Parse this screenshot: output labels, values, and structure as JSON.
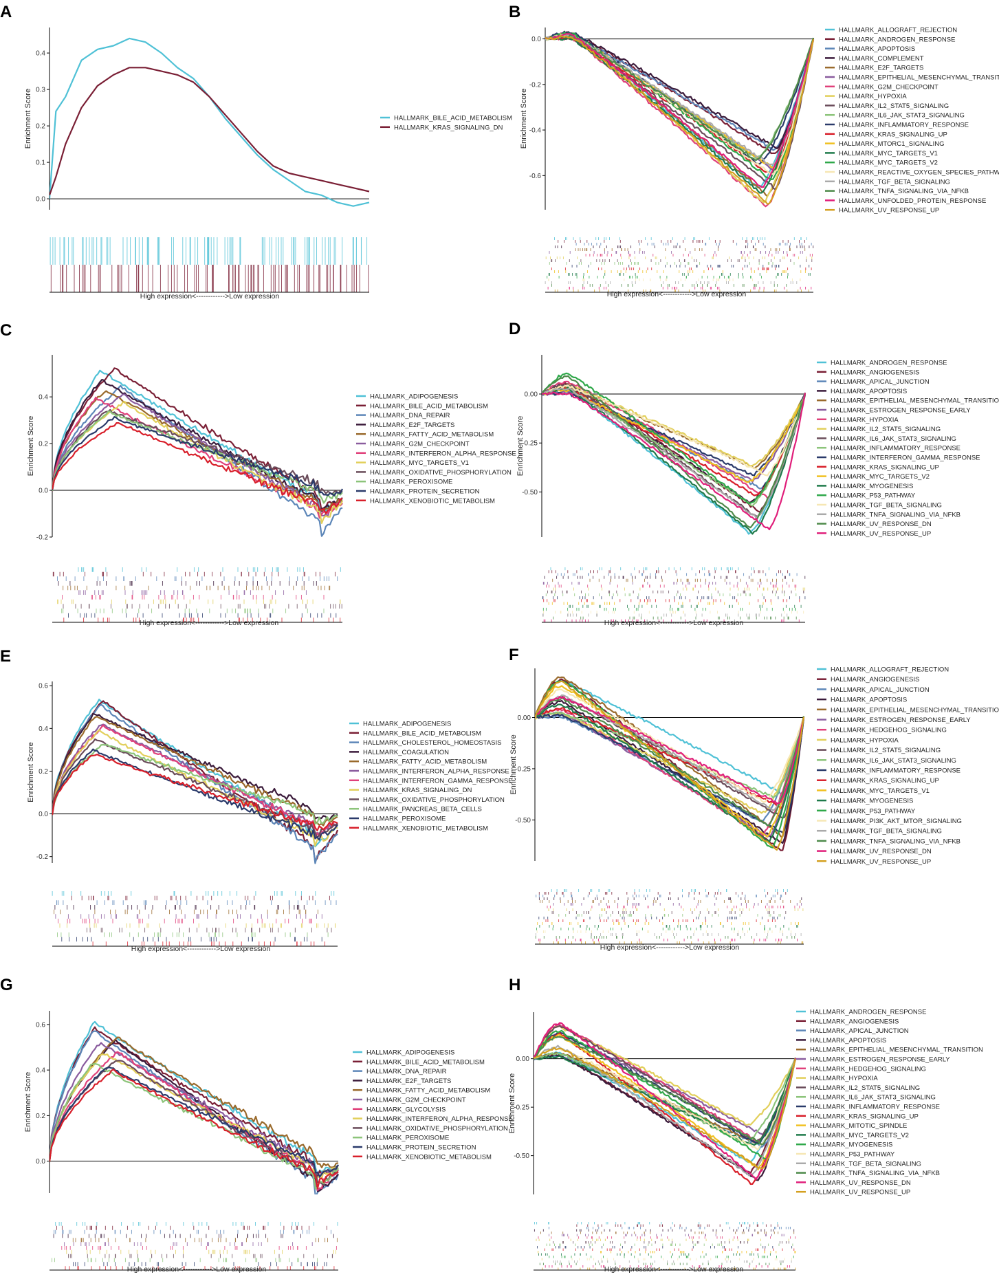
{
  "figure": {
    "colors": [
      "#4FC1D6",
      "#7A1F35",
      "#5C86B8",
      "#3A1A3A",
      "#9A6A2C",
      "#8A5C9E",
      "#E0407A",
      "#E2CF5A",
      "#6A4C5A",
      "#8CC47A",
      "#2A3A6A",
      "#D81F2A",
      "#F0C020",
      "#1E7A4A",
      "#2FA84A",
      "#F6E7B4",
      "#AAAAAA",
      "#4E8A4A",
      "#E01E7A",
      "#D4A020"
    ],
    "gene_rank_label": "High expression<------------>Low expression",
    "axis_ylabel": "Enrichment Score",
    "chart_data": [
      {
        "panel": "A",
        "type": "line",
        "ylabel": "Enrichment Score",
        "xlabel": "High expression<------------>Low expression",
        "ylim": [
          -0.03,
          0.47
        ],
        "yticks": [
          0.0,
          0.1,
          0.2,
          0.3,
          0.4
        ],
        "ytick_labels": [
          "0.0",
          "0.1",
          "0.2",
          "0.3",
          "0.4"
        ],
        "x": [
          0,
          0.02,
          0.05,
          0.1,
          0.15,
          0.2,
          0.25,
          0.3,
          0.35,
          0.4,
          0.45,
          0.5,
          0.55,
          0.6,
          0.65,
          0.7,
          0.75,
          0.8,
          0.85,
          0.9,
          0.95,
          1.0
        ],
        "series": [
          {
            "name": "HALLMARK_BILE_ACID_METABOLISM",
            "color_index": 0,
            "values": [
              0.0,
              0.24,
              0.28,
              0.38,
              0.41,
              0.42,
              0.44,
              0.43,
              0.4,
              0.36,
              0.33,
              0.28,
              0.22,
              0.17,
              0.12,
              0.08,
              0.05,
              0.02,
              0.01,
              -0.01,
              -0.02,
              -0.01
            ]
          },
          {
            "name": "HALLMARK_KRAS_SIGNALING_DN",
            "color_index": 1,
            "values": [
              0.01,
              0.06,
              0.15,
              0.25,
              0.31,
              0.34,
              0.36,
              0.36,
              0.35,
              0.34,
              0.32,
              0.28,
              0.23,
              0.18,
              0.13,
              0.09,
              0.07,
              0.06,
              0.05,
              0.04,
              0.03,
              0.02
            ]
          }
        ]
      },
      {
        "panel": "B",
        "type": "line",
        "ylabel": "Enrichment Score",
        "xlabel": "High expression<------------>Low expression",
        "ylim": [
          -0.75,
          0.05
        ],
        "yticks": [
          0.0,
          -0.2,
          -0.4,
          -0.6
        ],
        "ytick_labels": [
          "0.0",
          "-0.2",
          "-0.4",
          "-0.6"
        ],
        "shape": "dip",
        "peak": 0.03,
        "trough_x": 0.84,
        "trough_min": -0.43,
        "trough_max": -0.74,
        "series": [
          {
            "name": "HALLMARK_ALLOGRAFT_REJECTION",
            "color_index": 0
          },
          {
            "name": "HALLMARK_ANDROGEN_RESPONSE",
            "color_index": 1
          },
          {
            "name": "HALLMARK_APOPTOSIS",
            "color_index": 2
          },
          {
            "name": "HALLMARK_COMPLEMENT",
            "color_index": 3
          },
          {
            "name": "HALLMARK_E2F_TARGETS",
            "color_index": 4
          },
          {
            "name": "HALLMARK_EPITHELIAL_MESENCHYMAL_TRANSITION",
            "color_index": 5
          },
          {
            "name": "HALLMARK_G2M_CHECKPOINT",
            "color_index": 6
          },
          {
            "name": "HALLMARK_HYPOXIA",
            "color_index": 7
          },
          {
            "name": "HALLMARK_IL2_STAT5_SIGNALING",
            "color_index": 8
          },
          {
            "name": "HALLMARK_IL6_JAK_STAT3_SIGNALING",
            "color_index": 9
          },
          {
            "name": "HALLMARK_INFLAMMATORY_RESPONSE",
            "color_index": 10
          },
          {
            "name": "HALLMARK_KRAS_SIGNALING_UP",
            "color_index": 11
          },
          {
            "name": "HALLMARK_MTORC1_SIGNALING",
            "color_index": 12
          },
          {
            "name": "HALLMARK_MYC_TARGETS_V1",
            "color_index": 13
          },
          {
            "name": "HALLMARK_MYC_TARGETS_V2",
            "color_index": 14
          },
          {
            "name": "HALLMARK_REACTIVE_OXYGEN_SPECIES_PATHWAY",
            "color_index": 15
          },
          {
            "name": "HALLMARK_TGF_BETA_SIGNALING",
            "color_index": 16
          },
          {
            "name": "HALLMARK_TNFA_SIGNALING_VIA_NFKB",
            "color_index": 17
          },
          {
            "name": "HALLMARK_UNFOLDED_PROTEIN_RESPONSE",
            "color_index": 18
          },
          {
            "name": "HALLMARK_UV_RESPONSE_UP",
            "color_index": 19
          }
        ]
      },
      {
        "panel": "C",
        "type": "line",
        "ylabel": "Enrichment Score",
        "xlabel": "High expression<------------>Low expression",
        "ylim": [
          -0.2,
          0.58
        ],
        "yticks": [
          0.4,
          0.2,
          0.0,
          -0.2
        ],
        "ytick_labels": [
          "0.4",
          "0.2",
          "0.0",
          "-0.2"
        ],
        "shape": "hump",
        "peak_x": 0.2,
        "peak_min": 0.29,
        "peak_max": 0.55,
        "end_min": -0.18,
        "end_max": 0.02,
        "series": [
          {
            "name": "HALLMARK_ADIPOGENESIS",
            "color_index": 0
          },
          {
            "name": "HALLMARK_BILE_ACID_METABOLISM",
            "color_index": 1
          },
          {
            "name": "HALLMARK_DNA_REPAIR",
            "color_index": 2
          },
          {
            "name": "HALLMARK_E2F_TARGETS",
            "color_index": 3
          },
          {
            "name": "HALLMARK_FATTY_ACID_METABOLISM",
            "color_index": 4
          },
          {
            "name": "HALLMARK_G2M_CHECKPOINT",
            "color_index": 5
          },
          {
            "name": "HALLMARK_INTERFERON_ALPHA_RESPONSE",
            "color_index": 6
          },
          {
            "name": "HALLMARK_MYC_TARGETS_V1",
            "color_index": 7
          },
          {
            "name": "HALLMARK_OXIDATIVE_PHOSPHORYLATION",
            "color_index": 8
          },
          {
            "name": "HALLMARK_PEROXISOME",
            "color_index": 9
          },
          {
            "name": "HALLMARK_PROTEIN_SECRETION",
            "color_index": 10
          },
          {
            "name": "HALLMARK_XENOBIOTIC_METABOLISM",
            "color_index": 11
          }
        ]
      },
      {
        "panel": "D",
        "type": "line",
        "ylabel": "Enrichment Score",
        "xlabel": "High expression<------------>Low expression",
        "ylim": [
          -0.73,
          0.2
        ],
        "yticks": [
          0.0,
          -0.25,
          -0.5
        ],
        "ytick_labels": [
          "0.00",
          "-0.25",
          "-0.50"
        ],
        "shape": "dip",
        "peak": 0.12,
        "trough_x": 0.84,
        "trough_min": -0.28,
        "trough_max": -0.72,
        "series": [
          {
            "name": "HALLMARK_ANDROGEN_RESPONSE",
            "color_index": 0
          },
          {
            "name": "HALLMARK_ANGIOGENESIS",
            "color_index": 1
          },
          {
            "name": "HALLMARK_APICAL_JUNCTION",
            "color_index": 2
          },
          {
            "name": "HALLMARK_APOPTOSIS",
            "color_index": 3
          },
          {
            "name": "HALLMARK_EPITHELIAL_MESENCHYMAL_TRANSITION",
            "color_index": 4
          },
          {
            "name": "HALLMARK_ESTROGEN_RESPONSE_EARLY",
            "color_index": 5
          },
          {
            "name": "HALLMARK_HYPOXIA",
            "color_index": 6
          },
          {
            "name": "HALLMARK_IL2_STAT5_SIGNALING",
            "color_index": 7
          },
          {
            "name": "HALLMARK_IL6_JAK_STAT3_SIGNALING",
            "color_index": 8
          },
          {
            "name": "HALLMARK_INFLAMMATORY_RESPONSE",
            "color_index": 9
          },
          {
            "name": "HALLMARK_INTERFERON_GAMMA_RESPONSE",
            "color_index": 10
          },
          {
            "name": "HALLMARK_KRAS_SIGNALING_UP",
            "color_index": 11
          },
          {
            "name": "HALLMARK_MYC_TARGETS_V2",
            "color_index": 12
          },
          {
            "name": "HALLMARK_MYOGENESIS",
            "color_index": 13
          },
          {
            "name": "HALLMARK_P53_PATHWAY",
            "color_index": 14
          },
          {
            "name": "HALLMARK_TGF_BETA_SIGNALING",
            "color_index": 15
          },
          {
            "name": "HALLMARK_TNFA_SIGNALING_VIA_NFKB",
            "color_index": 16
          },
          {
            "name": "HALLMARK_UV_RESPONSE_DN",
            "color_index": 17
          },
          {
            "name": "HALLMARK_UV_RESPONSE_UP",
            "color_index": 18
          }
        ]
      },
      {
        "panel": "E",
        "type": "line",
        "ylabel": "Enrichment Score",
        "xlabel": "High expression<------------>Low expression",
        "ylim": [
          -0.23,
          0.62
        ],
        "yticks": [
          0.6,
          0.4,
          0.2,
          0.0,
          -0.2
        ],
        "ytick_labels": [
          "0.6",
          "0.4",
          "0.2",
          "0.0",
          "-0.2"
        ],
        "shape": "hump",
        "peak_x": 0.15,
        "peak_min": 0.28,
        "peak_max": 0.59,
        "end_min": -0.22,
        "end_max": 0.0,
        "series": [
          {
            "name": "HALLMARK_ADIPOGENESIS",
            "color_index": 0
          },
          {
            "name": "HALLMARK_BILE_ACID_METABOLISM",
            "color_index": 1
          },
          {
            "name": "HALLMARK_CHOLESTEROL_HOMEOSTASIS",
            "color_index": 2
          },
          {
            "name": "HALLMARK_COAGULATION",
            "color_index": 3
          },
          {
            "name": "HALLMARK_FATTY_ACID_METABOLISM",
            "color_index": 4
          },
          {
            "name": "HALLMARK_INTERFERON_ALPHA_RESPONSE",
            "color_index": 5
          },
          {
            "name": "HALLMARK_INTERFERON_GAMMA_RESPONSE",
            "color_index": 6
          },
          {
            "name": "HALLMARK_KRAS_SIGNALING_DN",
            "color_index": 7
          },
          {
            "name": "HALLMARK_OXIDATIVE_PHOSPHORYLATION",
            "color_index": 8
          },
          {
            "name": "HALLMARK_PANCREAS_BETA_CELLS",
            "color_index": 9
          },
          {
            "name": "HALLMARK_PEROXISOME",
            "color_index": 10
          },
          {
            "name": "HALLMARK_XENOBIOTIC_METABOLISM",
            "color_index": 11
          }
        ]
      },
      {
        "panel": "F",
        "type": "line",
        "ylabel": "Enrichment Score",
        "xlabel": "High expression<------------>Low expression",
        "ylim": [
          -0.7,
          0.24
        ],
        "yticks": [
          0.0,
          -0.25,
          -0.5
        ],
        "ytick_labels": [
          "0.00",
          "-0.25",
          "-0.50"
        ],
        "shape": "dip",
        "peak": 0.2,
        "trough_x": 0.9,
        "trough_min": -0.3,
        "trough_max": -0.66,
        "series": [
          {
            "name": "HALLMARK_ALLOGRAFT_REJECTION",
            "color_index": 0
          },
          {
            "name": "HALLMARK_ANGIOGENESIS",
            "color_index": 1
          },
          {
            "name": "HALLMARK_APICAL_JUNCTION",
            "color_index": 2
          },
          {
            "name": "HALLMARK_APOPTOSIS",
            "color_index": 3
          },
          {
            "name": "HALLMARK_EPITHELIAL_MESENCHYMAL_TRANSITION",
            "color_index": 4
          },
          {
            "name": "HALLMARK_ESTROGEN_RESPONSE_EARLY",
            "color_index": 5
          },
          {
            "name": "HALLMARK_HEDGEHOG_SIGNALING",
            "color_index": 6
          },
          {
            "name": "HALLMARK_HYPOXIA",
            "color_index": 7
          },
          {
            "name": "HALLMARK_IL2_STAT5_SIGNALING",
            "color_index": 8
          },
          {
            "name": "HALLMARK_IL6_JAK_STAT3_SIGNALING",
            "color_index": 9
          },
          {
            "name": "HALLMARK_INFLAMMATORY_RESPONSE",
            "color_index": 10
          },
          {
            "name": "HALLMARK_KRAS_SIGNALING_UP",
            "color_index": 11
          },
          {
            "name": "HALLMARK_MYC_TARGETS_V1",
            "color_index": 12
          },
          {
            "name": "HALLMARK_MYOGENESIS",
            "color_index": 13
          },
          {
            "name": "HALLMARK_P53_PATHWAY",
            "color_index": 14
          },
          {
            "name": "HALLMARK_PI3K_AKT_MTOR_SIGNALING",
            "color_index": 15
          },
          {
            "name": "HALLMARK_TGF_BETA_SIGNALING",
            "color_index": 16
          },
          {
            "name": "HALLMARK_TNFA_SIGNALING_VIA_NFKB",
            "color_index": 17
          },
          {
            "name": "HALLMARK_UV_RESPONSE_DN",
            "color_index": 18
          },
          {
            "name": "HALLMARK_UV_RESPONSE_UP",
            "color_index": 19
          }
        ]
      },
      {
        "panel": "G",
        "type": "line",
        "ylabel": "Enrichment Score",
        "xlabel": "High expression<------------>Low expression",
        "ylim": [
          -0.14,
          0.66
        ],
        "yticks": [
          0.6,
          0.4,
          0.2,
          0.0
        ],
        "ytick_labels": [
          "0.6",
          "0.4",
          "0.2",
          "0.0"
        ],
        "shape": "hump",
        "peak_x": 0.2,
        "peak_min": 0.4,
        "peak_max": 0.63,
        "end_min": -0.13,
        "end_max": 0.0,
        "series": [
          {
            "name": "HALLMARK_ADIPOGENESIS",
            "color_index": 0
          },
          {
            "name": "HALLMARK_BILE_ACID_METABOLISM",
            "color_index": 1
          },
          {
            "name": "HALLMARK_DNA_REPAIR",
            "color_index": 2
          },
          {
            "name": "HALLMARK_E2F_TARGETS",
            "color_index": 3
          },
          {
            "name": "HALLMARK_FATTY_ACID_METABOLISM",
            "color_index": 4
          },
          {
            "name": "HALLMARK_G2M_CHECKPOINT",
            "color_index": 5
          },
          {
            "name": "HALLMARK_GLYCOLYSIS",
            "color_index": 6
          },
          {
            "name": "HALLMARK_INTERFERON_ALPHA_RESPONSE",
            "color_index": 7
          },
          {
            "name": "HALLMARK_OXIDATIVE_PHOSPHORYLATION",
            "color_index": 8
          },
          {
            "name": "HALLMARK_PEROXISOME",
            "color_index": 9
          },
          {
            "name": "HALLMARK_PROTEIN_SECRETION",
            "color_index": 10
          },
          {
            "name": "HALLMARK_XENOBIOTIC_METABOLISM",
            "color_index": 11
          }
        ]
      },
      {
        "panel": "H",
        "type": "line",
        "ylabel": "Enrichment Score",
        "xlabel": "High expression<------------>Low expression",
        "ylim": [
          -0.7,
          0.24
        ],
        "yticks": [
          0.0,
          -0.25,
          -0.5
        ],
        "ytick_labels": [
          "0.00",
          "-0.25",
          "-0.50"
        ],
        "shape": "dip",
        "peak": 0.2,
        "trough_x": 0.87,
        "trough_min": -0.28,
        "trough_max": -0.68,
        "series": [
          {
            "name": "HALLMARK_ANDROGEN_RESPONSE",
            "color_index": 0
          },
          {
            "name": "HALLMARK_ANGIOGENESIS",
            "color_index": 1
          },
          {
            "name": "HALLMARK_APICAL_JUNCTION",
            "color_index": 2
          },
          {
            "name": "HALLMARK_APOPTOSIS",
            "color_index": 3
          },
          {
            "name": "HALLMARK_EPITHELIAL_MESENCHYMAL_TRANSITION",
            "color_index": 4
          },
          {
            "name": "HALLMARK_ESTROGEN_RESPONSE_EARLY",
            "color_index": 5
          },
          {
            "name": "HALLMARK_HEDGEHOG_SIGNALING",
            "color_index": 6
          },
          {
            "name": "HALLMARK_HYPOXIA",
            "color_index": 7
          },
          {
            "name": "HALLMARK_IL2_STAT5_SIGNALING",
            "color_index": 8
          },
          {
            "name": "HALLMARK_IL6_JAK_STAT3_SIGNALING",
            "color_index": 9
          },
          {
            "name": "HALLMARK_INFLAMMATORY_RESPONSE",
            "color_index": 10
          },
          {
            "name": "HALLMARK_KRAS_SIGNALING_UP",
            "color_index": 11
          },
          {
            "name": "HALLMARK_MITOTIC_SPINDLE",
            "color_index": 12
          },
          {
            "name": "HALLMARK_MYC_TARGETS_V2",
            "color_index": 13
          },
          {
            "name": "HALLMARK_MYOGENESIS",
            "color_index": 14
          },
          {
            "name": "HALLMARK_P53_PATHWAY",
            "color_index": 15
          },
          {
            "name": "HALLMARK_TGF_BETA_SIGNALING",
            "color_index": 16
          },
          {
            "name": "HALLMARK_TNFA_SIGNALING_VIA_NFKB",
            "color_index": 17
          },
          {
            "name": "HALLMARK_UV_RESPONSE_DN",
            "color_index": 18
          },
          {
            "name": "HALLMARK_UV_RESPONSE_UP",
            "color_index": 19
          }
        ]
      }
    ]
  }
}
